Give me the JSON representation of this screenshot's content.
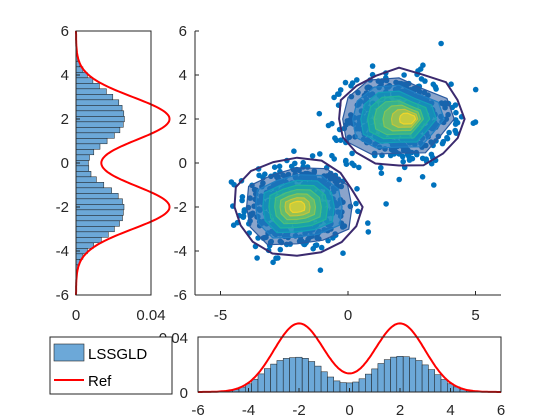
{
  "chart_data": [
    {
      "id": "scatter",
      "type": "scatter",
      "title": "",
      "xlabel": "",
      "ylabel": "",
      "xlim": [
        -6,
        6
      ],
      "ylim": [
        -6,
        6
      ],
      "xticks": [
        -5,
        0,
        5
      ],
      "yticks": [
        -6,
        -4,
        -2,
        0,
        2,
        4,
        6
      ],
      "xtick_labels": [
        "-5",
        "0",
        "5"
      ],
      "ytick_labels": [
        "-6",
        "-4",
        "-2",
        "0",
        "2",
        "4",
        "6"
      ],
      "point_color": "#0072BD",
      "clusters": [
        {
          "center": [
            -2,
            -2
          ],
          "spread": 1.0,
          "approx_points": 500
        },
        {
          "center": [
            2,
            2
          ],
          "spread": 1.0,
          "approx_points": 500
        }
      ],
      "contour_levels": [
        {
          "color": "#2a5aa0",
          "scale": 1.4
        },
        {
          "color": "#1f7fc4",
          "scale": 1.15
        },
        {
          "color": "#13a0b8",
          "scale": 0.95
        },
        {
          "color": "#20b49a",
          "scale": 0.78
        },
        {
          "color": "#4cbf7a",
          "scale": 0.62
        },
        {
          "color": "#86c556",
          "scale": 0.47
        },
        {
          "color": "#c3c53a",
          "scale": 0.33
        },
        {
          "color": "#f0d52a",
          "scale": 0.2
        }
      ],
      "reference_contour_color": "#3b2a6e",
      "grid": false
    },
    {
      "id": "y-marginal",
      "type": "bar",
      "orientation": "horizontal",
      "xlim": [
        0,
        0.04
      ],
      "ylim": [
        -6,
        6
      ],
      "xticks": [
        0,
        0.04
      ],
      "yticks": [
        -6,
        -4,
        -2,
        0,
        2,
        4,
        6
      ],
      "xtick_labels": [
        "0",
        "0.04"
      ],
      "ytick_labels": [
        "-6",
        "-4",
        "-2",
        "0",
        "2",
        "4",
        "6"
      ],
      "bins": [
        -4.75,
        -4.5,
        -4.25,
        -4,
        -3.75,
        -3.5,
        -3.25,
        -3,
        -2.75,
        -2.5,
        -2.25,
        -2,
        -1.75,
        -1.5,
        -1.25,
        -1,
        -0.75,
        -0.5,
        -0.25,
        0,
        0.25,
        0.5,
        0.75,
        1,
        1.25,
        1.5,
        1.75,
        2,
        2.25,
        2.5,
        2.75,
        3,
        3.25,
        3.5,
        3.75,
        4,
        4.25,
        4.5,
        4.75
      ],
      "values": [
        0.0009,
        0.002,
        0.0037,
        0.0061,
        0.0094,
        0.0135,
        0.0172,
        0.0205,
        0.0232,
        0.0248,
        0.0253,
        0.0256,
        0.0248,
        0.0225,
        0.019,
        0.0148,
        0.0109,
        0.008,
        0.0068,
        0.0066,
        0.0072,
        0.0095,
        0.0128,
        0.0166,
        0.0205,
        0.0234,
        0.0252,
        0.0258,
        0.0255,
        0.0246,
        0.0228,
        0.0196,
        0.0162,
        0.0125,
        0.009,
        0.006,
        0.0037,
        0.002,
        0.0009
      ],
      "bar_color": "#6CA8D8",
      "ref_color": "#FF0000"
    },
    {
      "id": "x-marginal",
      "type": "bar",
      "orientation": "vertical",
      "xlim": [
        -6,
        6
      ],
      "ylim": [
        0,
        0.04
      ],
      "xticks": [
        -6,
        -4,
        -2,
        0,
        2,
        4,
        6
      ],
      "yticks": [
        0,
        0.04
      ],
      "xtick_labels": [
        "-6",
        "-4",
        "-2",
        "0",
        "2",
        "4",
        "6"
      ],
      "ytick_labels": [
        "0",
        "0.04"
      ],
      "bins": [
        -4.75,
        -4.5,
        -4.25,
        -4,
        -3.75,
        -3.5,
        -3.25,
        -3,
        -2.75,
        -2.5,
        -2.25,
        -2,
        -1.75,
        -1.5,
        -1.25,
        -1,
        -0.75,
        -0.5,
        -0.25,
        0,
        0.25,
        0.5,
        0.75,
        1,
        1.25,
        1.5,
        1.75,
        2,
        2.25,
        2.5,
        2.75,
        3,
        3.25,
        3.5,
        3.75,
        4,
        4.25,
        4.5,
        4.75
      ],
      "values": [
        0.0009,
        0.0019,
        0.0036,
        0.006,
        0.0093,
        0.0132,
        0.017,
        0.0203,
        0.0229,
        0.0244,
        0.025,
        0.0253,
        0.0245,
        0.0222,
        0.0188,
        0.0147,
        0.0109,
        0.0081,
        0.0068,
        0.0066,
        0.0073,
        0.0096,
        0.013,
        0.0168,
        0.0207,
        0.0236,
        0.0254,
        0.026,
        0.0257,
        0.0247,
        0.0229,
        0.0197,
        0.0163,
        0.0126,
        0.0091,
        0.006,
        0.0037,
        0.002,
        0.0009
      ],
      "bar_color": "#6CA8D8",
      "ref_color": "#FF0000"
    }
  ],
  "legend": {
    "items": [
      {
        "label": "LSSGLD",
        "kind": "patch",
        "color": "#6CA8D8"
      },
      {
        "label": "Ref",
        "kind": "line",
        "color": "#FF0000"
      }
    ]
  }
}
